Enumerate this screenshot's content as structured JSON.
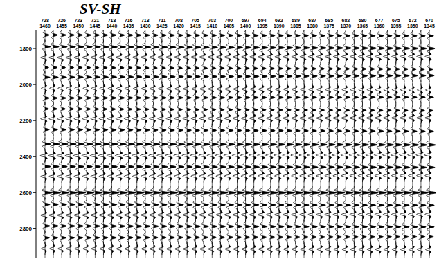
{
  "chart_data": {
    "type": "wiggle",
    "title": "SV-SH",
    "categories": [
      "728",
      null,
      "726",
      null,
      "723",
      null,
      "721",
      null,
      "718",
      null,
      "716",
      null,
      "713",
      null,
      "711",
      null,
      "708",
      null,
      "705",
      null,
      "703",
      null,
      "700",
      null,
      "697",
      null,
      "694",
      null,
      "692",
      null,
      "689",
      null,
      "687",
      null,
      "685",
      null,
      "682",
      null,
      "680",
      null,
      "677",
      null,
      "675",
      null,
      "672",
      null,
      "670"
    ],
    "categories_2": [
      "1460",
      null,
      "1455",
      null,
      "1450",
      null,
      "1445",
      null,
      "1440",
      null,
      "1435",
      null,
      "1430",
      null,
      "1425",
      null,
      "1420",
      null,
      "1415",
      null,
      "1410",
      null,
      "1405",
      null,
      "1400",
      null,
      "1395",
      null,
      "1390",
      null,
      "1385",
      null,
      "1380",
      null,
      "1375",
      null,
      "1370",
      null,
      "1365",
      null,
      "1360",
      null,
      "1355",
      null,
      "1350",
      null,
      "1345"
    ],
    "ylim": [
      1700,
      2960
    ],
    "yticks": [
      1800,
      2000,
      2200,
      2400,
      2600,
      2800
    ],
    "color": "#000000",
    "events": [
      {
        "t_left": 1725,
        "t_right": 1730,
        "amplitude": 0.7
      },
      {
        "t_left": 1790,
        "t_right": 1800,
        "amplitude": 0.9
      },
      {
        "t_left": 1850,
        "t_right": 1845,
        "amplitude": -0.7
      },
      {
        "t_left": 1905,
        "t_right": 1915,
        "amplitude": 0.6
      },
      {
        "t_left": 1960,
        "t_right": 1950,
        "amplitude": 0.8
      },
      {
        "t_left": 2020,
        "t_right": 2030,
        "amplitude": -0.6
      },
      {
        "t_left": 2075,
        "t_right": 2070,
        "amplitude": 0.7
      },
      {
        "t_left": 2135,
        "t_right": 2145,
        "amplitude": 0.6
      },
      {
        "t_left": 2190,
        "t_right": 2185,
        "amplitude": -0.7
      },
      {
        "t_left": 2250,
        "t_right": 2260,
        "amplitude": 0.7
      },
      {
        "t_left": 2330,
        "t_right": 2335,
        "amplitude": 1.0
      },
      {
        "t_left": 2395,
        "t_right": 2390,
        "amplitude": -0.8
      },
      {
        "t_left": 2455,
        "t_right": 2460,
        "amplitude": 0.9
      },
      {
        "t_left": 2510,
        "t_right": 2505,
        "amplitude": -0.7
      },
      {
        "t_left": 2600,
        "t_right": 2600,
        "amplitude": 1.2
      },
      {
        "t_left": 2665,
        "t_right": 2670,
        "amplitude": 0.8
      },
      {
        "t_left": 2725,
        "t_right": 2720,
        "amplitude": -0.7
      },
      {
        "t_left": 2785,
        "t_right": 2790,
        "amplitude": 0.8
      },
      {
        "t_left": 2850,
        "t_right": 2845,
        "amplitude": 0.7
      },
      {
        "t_left": 2910,
        "t_right": 2915,
        "amplitude": -0.6
      }
    ]
  }
}
